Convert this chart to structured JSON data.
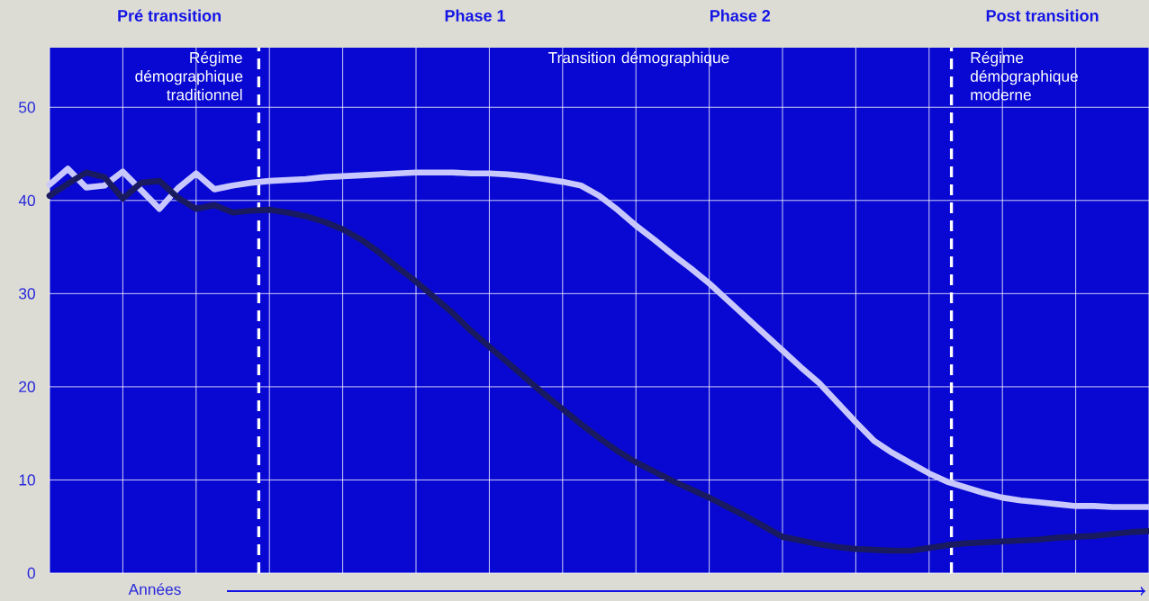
{
  "chart_data": {
    "type": "line",
    "xlabel": "Années",
    "categories": [
      null,
      null,
      null,
      null,
      null,
      null,
      null,
      null,
      null,
      null,
      null,
      null,
      null,
      null,
      null,
      null,
      null,
      null,
      null,
      null,
      null,
      null,
      null,
      null,
      null,
      null,
      null,
      null,
      null,
      null,
      null,
      null,
      null,
      null,
      null,
      null,
      null,
      null,
      null,
      null,
      null,
      null,
      null,
      null,
      null,
      null,
      null,
      null,
      null,
      null,
      null,
      null,
      null,
      null,
      null,
      null,
      null,
      null,
      null,
      null,
      null
    ],
    "ylim": [
      0,
      56.4
    ],
    "yticks": [
      0,
      10,
      20,
      30,
      40,
      50
    ],
    "grid": true,
    "line_style": "solid",
    "series": [
      {
        "color": "#c8c8ff",
        "values": [
          41.7,
          43.4,
          41.4,
          41.6,
          43.1,
          41.1,
          39.1,
          41.3,
          42.9,
          41.2,
          41.6,
          41.9,
          42.1,
          42.2,
          42.3,
          42.5,
          42.6,
          42.7,
          42.8,
          42.9,
          43.0,
          43.0,
          43.0,
          42.9,
          42.9,
          42.8,
          42.6,
          42.3,
          42.0,
          41.6,
          40.5,
          39.0,
          37.3,
          35.8,
          34.2,
          32.7,
          31.1,
          29.3,
          27.5,
          25.7,
          23.9,
          22.1,
          20.4,
          18.3,
          16.2,
          14.2,
          12.9,
          11.8,
          10.7,
          9.8,
          9.2,
          8.6,
          8.1,
          7.8,
          7.6,
          7.4,
          7.2,
          7.2,
          7.1,
          7.1,
          7.1
        ]
      },
      {
        "color": "#1a1a60",
        "values": [
          40.5,
          41.8,
          43.0,
          42.5,
          40.2,
          41.9,
          42.1,
          40.3,
          39.1,
          39.5,
          38.7,
          38.9,
          39.0,
          38.7,
          38.3,
          37.7,
          36.9,
          35.8,
          34.4,
          32.8,
          31.3,
          29.6,
          27.9,
          26.0,
          24.3,
          22.6,
          20.9,
          19.2,
          17.6,
          16.0,
          14.5,
          13.1,
          11.9,
          10.9,
          9.9,
          9.0,
          8.1,
          7.1,
          6.1,
          5.0,
          3.9,
          3.5,
          3.1,
          2.8,
          2.6,
          2.5,
          2.4,
          2.4,
          2.7,
          3.0,
          3.2,
          3.3,
          3.4,
          3.5,
          3.6,
          3.8,
          3.9,
          4.0,
          4.2,
          4.4,
          4.5
        ]
      }
    ],
    "annotations": [
      "Pré transition",
      "Phase 1",
      "Phase 2",
      "Post transition",
      "Régime démographique traditionnel",
      "Transition démographique",
      "Régime démographique moderne"
    ]
  }
}
